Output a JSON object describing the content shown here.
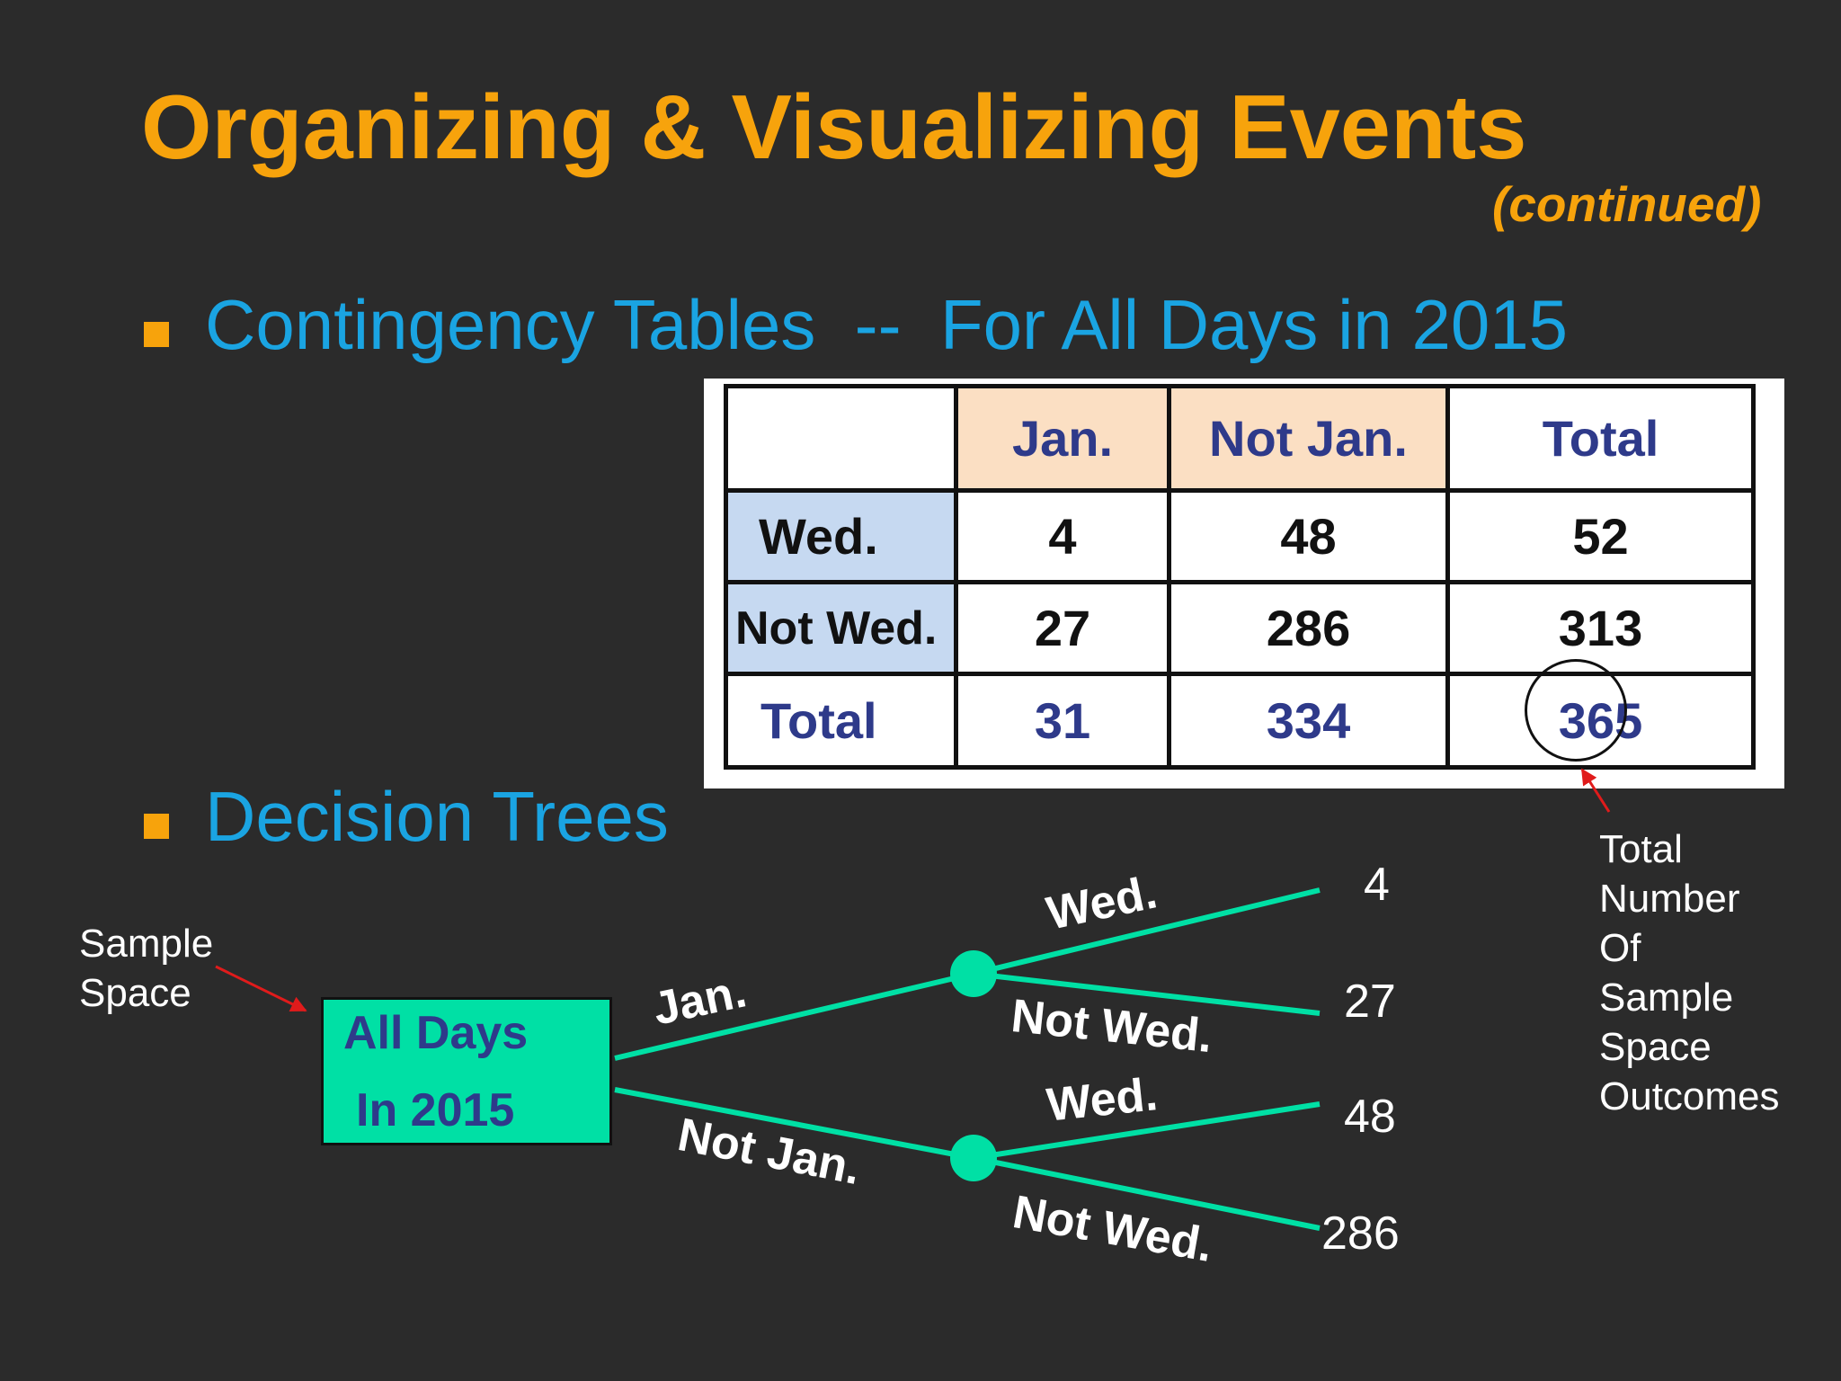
{
  "slide": {
    "title": "Organizing & Visualizing Events",
    "subtitle": "(continued)",
    "bullets": [
      "Contingency Tables  --  For All Days in 2015",
      "Decision Trees"
    ]
  },
  "contingency_table": {
    "header": [
      "",
      "Jan.",
      "Not Jan.",
      "Total"
    ],
    "rows": [
      {
        "label": "Wed.",
        "values": [
          "4",
          "48",
          "52"
        ]
      },
      {
        "label": "Not Wed.",
        "values": [
          "27",
          "286",
          "313"
        ]
      },
      {
        "label": "Total",
        "values": [
          "31",
          "334",
          "365"
        ]
      }
    ],
    "highlighted_cell": "365"
  },
  "annotations": {
    "sample_space": [
      "Sample",
      "Space"
    ],
    "total_outcomes": [
      "Total",
      "Number",
      "Of",
      "Sample",
      "Space",
      "Outcomes"
    ]
  },
  "decision_tree": {
    "root": [
      "All Days",
      "In 2015"
    ],
    "branches": {
      "jan": "Jan.",
      "not_jan": "Not Jan.",
      "jan_wed": "Wed.",
      "jan_not_wed": "Not Wed.",
      "notjan_wed": "Wed.",
      "notjan_not_wed": "Not Wed."
    },
    "leaves": [
      "4",
      "27",
      "48",
      "286"
    ]
  },
  "colors": {
    "background": "#2b2b2b",
    "title": "#f7a30c",
    "bullet_text": "#1aa4e2",
    "tree_green": "#00e0a5",
    "header_peach": "#fbdfc3",
    "rowheader_blue": "#c6d9f1",
    "table_text_blue": "#2e3a8a",
    "arrow_red": "#e01b1b"
  }
}
